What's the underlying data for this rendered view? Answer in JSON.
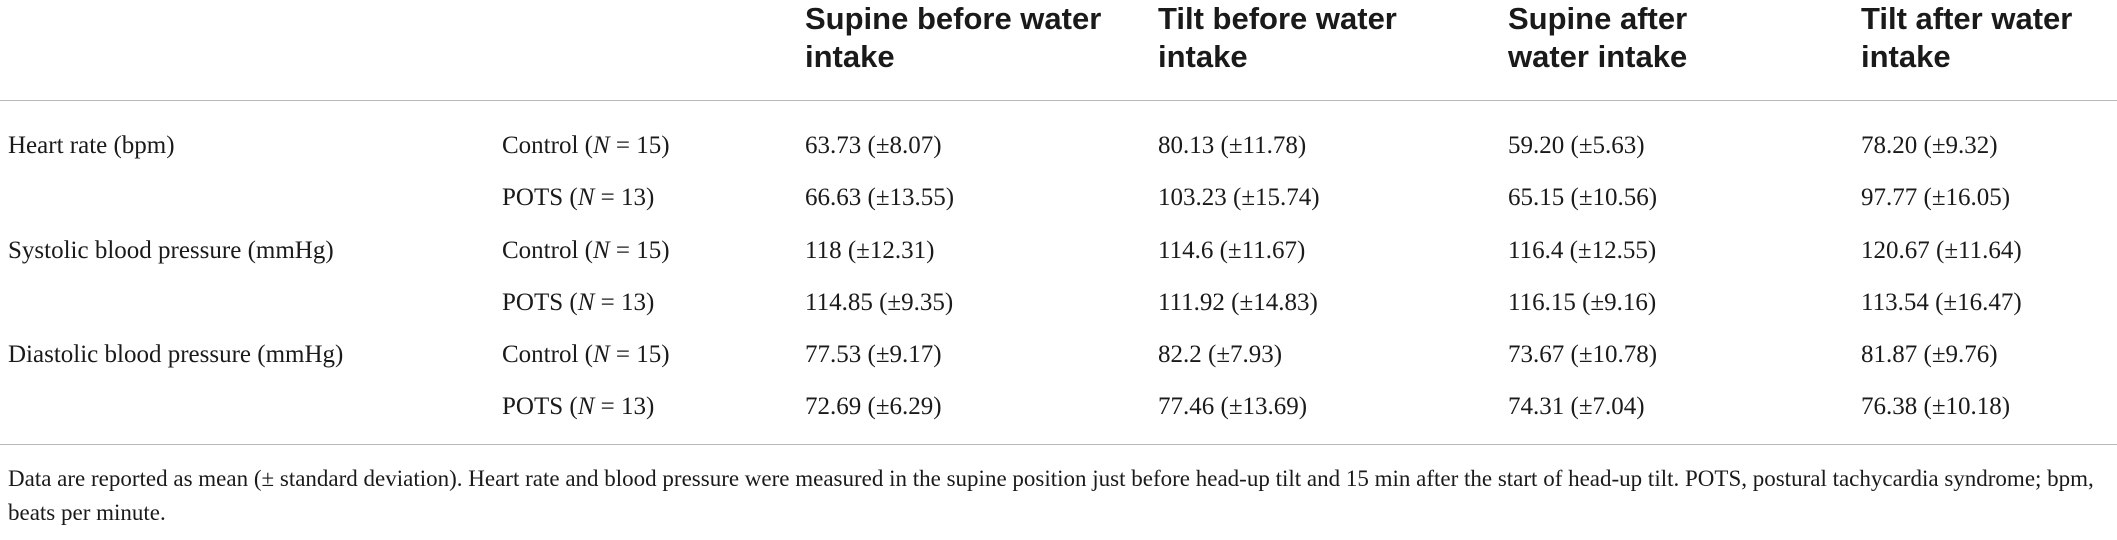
{
  "header": {
    "columns": [
      "Supine before water intake",
      "Tilt before water intake",
      "Supine after water intake",
      "Tilt after water intake"
    ]
  },
  "rows": [
    {
      "measure": "Heart rate (bpm)",
      "group_name": "Control",
      "n": "15",
      "values": [
        "63.73 (±8.07)",
        "80.13 (±11.78)",
        "59.20 (±5.63)",
        "78.20 (±9.32)"
      ]
    },
    {
      "measure": "",
      "group_name": "POTS",
      "n": "13",
      "values": [
        "66.63 (±13.55)",
        "103.23 (±15.74)",
        "65.15 (±10.56)",
        "97.77 (±16.05)"
      ]
    },
    {
      "measure": "Systolic blood pressure (mmHg)",
      "group_name": "Control",
      "n": "15",
      "values": [
        "118 (±12.31)",
        "114.6 (±11.67)",
        "116.4 (±12.55)",
        "120.67 (±11.64)"
      ]
    },
    {
      "measure": "",
      "group_name": "POTS",
      "n": "13",
      "values": [
        "114.85 (±9.35)",
        "111.92 (±14.83)",
        "116.15 (±9.16)",
        "113.54 (±16.47)"
      ]
    },
    {
      "measure": "Diastolic blood pressure (mmHg)",
      "group_name": "Control",
      "n": "15",
      "values": [
        "77.53 (±9.17)",
        "82.2 (±7.93)",
        "73.67 (±10.78)",
        "81.87 (±9.76)"
      ]
    },
    {
      "measure": "",
      "group_name": "POTS",
      "n": "13",
      "values": [
        "72.69 (±6.29)",
        "77.46 (±13.69)",
        "74.31 (±7.04)",
        "76.38 (±10.18)"
      ]
    }
  ],
  "footnote": "Data are reported as mean (± standard deviation). Heart rate and blood pressure were measured in the supine position just before head-up tilt and 15 min after the start of head-up tilt. POTS, postural tachycardia syndrome; bpm, beats per minute."
}
